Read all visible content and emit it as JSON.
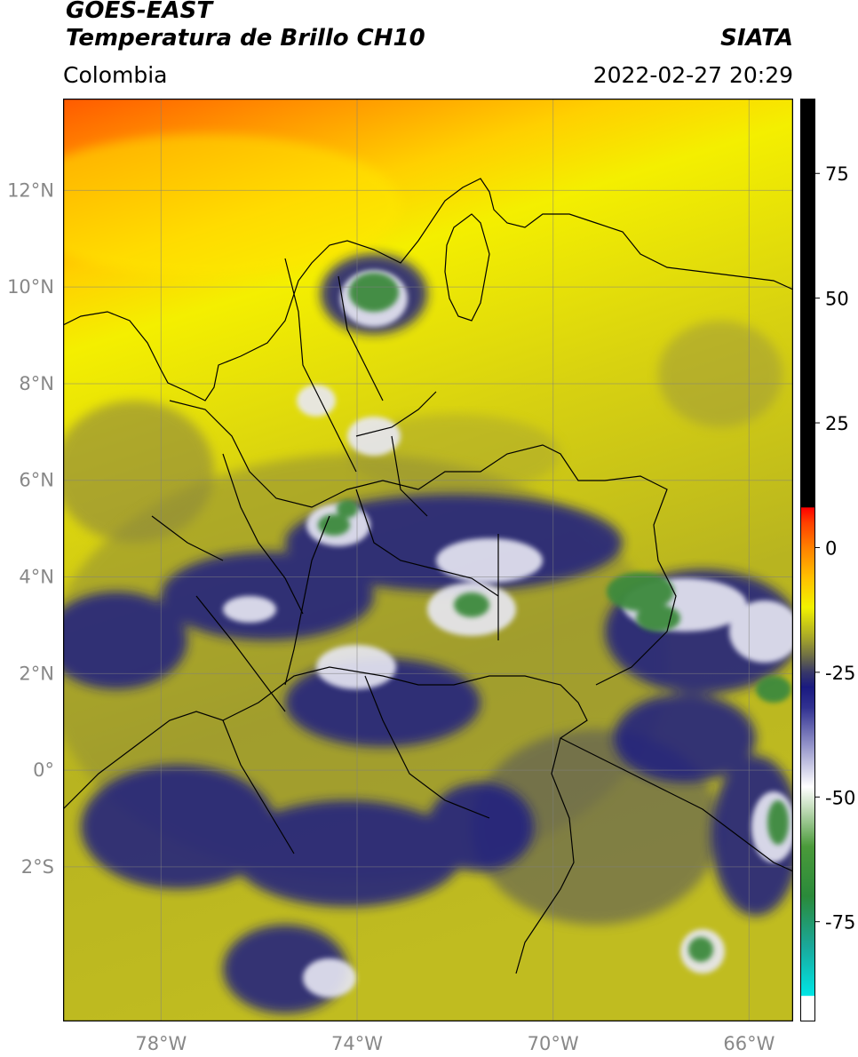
{
  "header": {
    "satellite": "GOES-EAST",
    "product": "Temperatura de Brillo CH10",
    "org": "SIATA",
    "region": "Colombia",
    "datetime": "2022-02-27 20:29"
  },
  "axes": {
    "lon_range": [
      -80,
      -65.1
    ],
    "lat_range": [
      -5.2,
      13.9
    ],
    "lon_ticks": [
      {
        "value": -78,
        "label": "78°W"
      },
      {
        "value": -74,
        "label": "74°W"
      },
      {
        "value": -70,
        "label": "70°W"
      },
      {
        "value": -66,
        "label": "66°W"
      }
    ],
    "lat_ticks": [
      {
        "value": 12,
        "label": "12°N"
      },
      {
        "value": 10,
        "label": "10°N"
      },
      {
        "value": 8,
        "label": "8°N"
      },
      {
        "value": 6,
        "label": "6°N"
      },
      {
        "value": 4,
        "label": "4°N"
      },
      {
        "value": 2,
        "label": "2°N"
      },
      {
        "value": 0,
        "label": "0°"
      },
      {
        "value": -2,
        "label": "2°S"
      }
    ],
    "grid": true
  },
  "colorbar": {
    "range": [
      -95,
      90
    ],
    "ticks": [
      {
        "value": 75,
        "label": "75"
      },
      {
        "value": 50,
        "label": "50"
      },
      {
        "value": 25,
        "label": "25"
      },
      {
        "value": 0,
        "label": "0"
      },
      {
        "value": -25,
        "label": "-25"
      },
      {
        "value": -50,
        "label": "-50"
      },
      {
        "value": -75,
        "label": "-75"
      }
    ],
    "stops": [
      {
        "value": -95,
        "color": "#ffffff"
      },
      {
        "value": -90,
        "color": "#ffffff"
      },
      {
        "value": -89.9,
        "color": "#00e5e5"
      },
      {
        "value": -80,
        "color": "#1aa89a"
      },
      {
        "value": -70,
        "color": "#2a8a3a"
      },
      {
        "value": -60,
        "color": "#4a9a3a"
      },
      {
        "value": -52,
        "color": "#c8e0c0"
      },
      {
        "value": -48,
        "color": "#ffffff"
      },
      {
        "value": -40,
        "color": "#9898cc"
      },
      {
        "value": -32,
        "color": "#303090"
      },
      {
        "value": -28,
        "color": "#1a1a80"
      },
      {
        "value": -25,
        "color": "#383868"
      },
      {
        "value": -22,
        "color": "#6a6a48"
      },
      {
        "value": -18,
        "color": "#a8a828"
      },
      {
        "value": -12,
        "color": "#f2f200"
      },
      {
        "value": -6,
        "color": "#ffc000"
      },
      {
        "value": 0,
        "color": "#ff8000"
      },
      {
        "value": 5,
        "color": "#ff4000"
      },
      {
        "value": 8,
        "color": "#ff0000"
      },
      {
        "value": 8.1,
        "color": "#000000"
      },
      {
        "value": 90,
        "color": "#000000"
      }
    ]
  }
}
